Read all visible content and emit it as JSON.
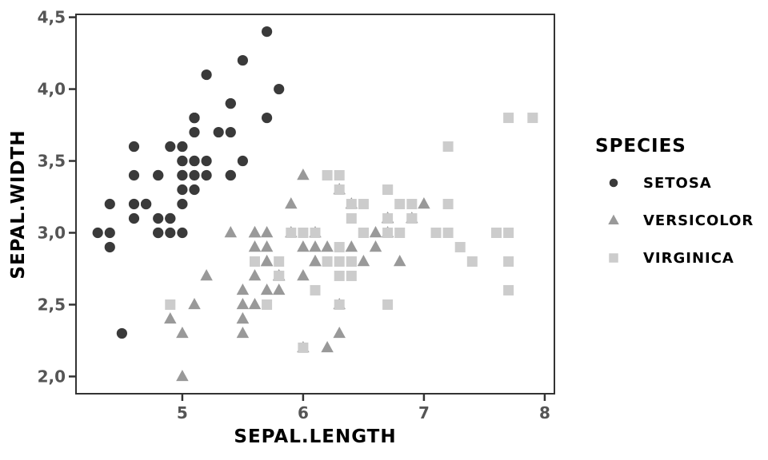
{
  "chart_data": {
    "type": "scatter",
    "title": "",
    "xlabel": "SEPAL.LENGTH",
    "ylabel": "SEPAL.WIDTH",
    "xlim": [
      4.12,
      8.08
    ],
    "ylim": [
      1.88,
      4.52
    ],
    "grid": false,
    "background": "#ffffff",
    "x_ticks": {
      "values": [
        5,
        6,
        7,
        8
      ],
      "labels": [
        "5",
        "6",
        "7",
        "8"
      ]
    },
    "y_ticks": {
      "values": [
        2.0,
        2.5,
        3.0,
        3.5,
        4.0,
        4.5
      ],
      "labels": [
        "2,0",
        "2,5",
        "3,0",
        "3,5",
        "4,0",
        "4,5"
      ]
    },
    "colors": {
      "axis": "#333333",
      "tick_label": "#555555",
      "title_text": "#000000",
      "setosa": "#3a3a3a",
      "versicolor": "#999999",
      "virginica": "#cccccc"
    },
    "legend": {
      "title": "SPECIES",
      "position": "right",
      "entries": [
        {
          "label": "SETOSA",
          "marker": "circle",
          "color": "#3a3a3a"
        },
        {
          "label": "VERSICOLOR",
          "marker": "triangle",
          "color": "#999999"
        },
        {
          "label": "VIRGINICA",
          "marker": "square",
          "color": "#cccccc"
        }
      ]
    },
    "series": [
      {
        "name": "SETOSA",
        "marker": "circle",
        "color": "#3a3a3a",
        "points": [
          [
            5.1,
            3.5
          ],
          [
            4.9,
            3.0
          ],
          [
            4.7,
            3.2
          ],
          [
            4.6,
            3.1
          ],
          [
            5.0,
            3.6
          ],
          [
            5.4,
            3.9
          ],
          [
            4.6,
            3.4
          ],
          [
            5.0,
            3.4
          ],
          [
            4.4,
            2.9
          ],
          [
            4.9,
            3.1
          ],
          [
            5.4,
            3.7
          ],
          [
            4.8,
            3.4
          ],
          [
            4.8,
            3.0
          ],
          [
            4.3,
            3.0
          ],
          [
            5.8,
            4.0
          ],
          [
            5.7,
            4.4
          ],
          [
            5.4,
            3.9
          ],
          [
            5.1,
            3.5
          ],
          [
            5.7,
            3.8
          ],
          [
            5.1,
            3.8
          ],
          [
            5.4,
            3.4
          ],
          [
            5.1,
            3.7
          ],
          [
            4.6,
            3.6
          ],
          [
            5.1,
            3.3
          ],
          [
            4.8,
            3.4
          ],
          [
            5.0,
            3.0
          ],
          [
            5.0,
            3.4
          ],
          [
            5.2,
            3.5
          ],
          [
            5.2,
            3.4
          ],
          [
            4.7,
            3.2
          ],
          [
            4.8,
            3.1
          ],
          [
            5.4,
            3.4
          ],
          [
            5.2,
            4.1
          ],
          [
            5.5,
            4.2
          ],
          [
            4.9,
            3.1
          ],
          [
            5.0,
            3.2
          ],
          [
            5.5,
            3.5
          ],
          [
            4.9,
            3.6
          ],
          [
            4.4,
            3.0
          ],
          [
            5.1,
            3.4
          ],
          [
            5.0,
            3.5
          ],
          [
            4.5,
            2.3
          ],
          [
            4.4,
            3.2
          ],
          [
            5.0,
            3.5
          ],
          [
            5.1,
            3.8
          ],
          [
            4.8,
            3.0
          ],
          [
            5.1,
            3.8
          ],
          [
            4.6,
            3.2
          ],
          [
            5.3,
            3.7
          ],
          [
            5.0,
            3.3
          ]
        ]
      },
      {
        "name": "VERSICOLOR",
        "marker": "triangle",
        "color": "#999999",
        "points": [
          [
            7.0,
            3.2
          ],
          [
            6.4,
            3.2
          ],
          [
            6.9,
            3.1
          ],
          [
            5.5,
            2.3
          ],
          [
            6.5,
            2.8
          ],
          [
            5.7,
            2.8
          ],
          [
            6.3,
            3.3
          ],
          [
            4.9,
            2.4
          ],
          [
            6.6,
            2.9
          ],
          [
            5.2,
            2.7
          ],
          [
            5.0,
            2.0
          ],
          [
            5.9,
            3.0
          ],
          [
            6.0,
            2.2
          ],
          [
            6.1,
            2.9
          ],
          [
            5.6,
            2.9
          ],
          [
            6.7,
            3.1
          ],
          [
            5.6,
            3.0
          ],
          [
            5.8,
            2.7
          ],
          [
            6.2,
            2.2
          ],
          [
            5.6,
            2.5
          ],
          [
            5.9,
            3.2
          ],
          [
            6.1,
            2.8
          ],
          [
            6.3,
            2.5
          ],
          [
            6.1,
            2.8
          ],
          [
            6.4,
            2.9
          ],
          [
            6.6,
            3.0
          ],
          [
            6.8,
            2.8
          ],
          [
            6.7,
            3.0
          ],
          [
            6.0,
            2.9
          ],
          [
            5.7,
            2.6
          ],
          [
            5.5,
            2.4
          ],
          [
            5.5,
            2.4
          ],
          [
            5.8,
            2.7
          ],
          [
            6.0,
            2.7
          ],
          [
            5.4,
            3.0
          ],
          [
            6.0,
            3.4
          ],
          [
            6.7,
            3.1
          ],
          [
            6.3,
            2.3
          ],
          [
            5.6,
            3.0
          ],
          [
            5.5,
            2.5
          ],
          [
            5.5,
            2.6
          ],
          [
            6.1,
            3.0
          ],
          [
            5.8,
            2.6
          ],
          [
            5.0,
            2.3
          ],
          [
            5.6,
            2.7
          ],
          [
            5.7,
            3.0
          ],
          [
            5.7,
            2.9
          ],
          [
            6.2,
            2.9
          ],
          [
            5.1,
            2.5
          ],
          [
            5.7,
            2.8
          ]
        ]
      },
      {
        "name": "VIRGINICA",
        "marker": "square",
        "color": "#cccccc",
        "points": [
          [
            6.3,
            3.3
          ],
          [
            5.8,
            2.7
          ],
          [
            7.1,
            3.0
          ],
          [
            6.3,
            2.9
          ],
          [
            6.5,
            3.0
          ],
          [
            7.6,
            3.0
          ],
          [
            4.9,
            2.5
          ],
          [
            7.3,
            2.9
          ],
          [
            6.7,
            2.5
          ],
          [
            7.2,
            3.6
          ],
          [
            6.5,
            3.2
          ],
          [
            6.4,
            2.7
          ],
          [
            6.8,
            3.0
          ],
          [
            5.7,
            2.5
          ],
          [
            5.8,
            2.8
          ],
          [
            6.4,
            3.2
          ],
          [
            6.5,
            3.0
          ],
          [
            7.7,
            3.8
          ],
          [
            7.7,
            2.6
          ],
          [
            6.0,
            2.2
          ],
          [
            6.9,
            3.2
          ],
          [
            5.6,
            2.8
          ],
          [
            7.7,
            2.8
          ],
          [
            6.3,
            2.7
          ],
          [
            6.7,
            3.3
          ],
          [
            7.2,
            3.2
          ],
          [
            6.2,
            2.8
          ],
          [
            6.1,
            3.0
          ],
          [
            6.4,
            2.8
          ],
          [
            7.2,
            3.0
          ],
          [
            7.4,
            2.8
          ],
          [
            7.9,
            3.8
          ],
          [
            6.4,
            2.8
          ],
          [
            6.3,
            2.8
          ],
          [
            6.1,
            2.6
          ],
          [
            7.7,
            3.0
          ],
          [
            6.3,
            3.4
          ],
          [
            6.4,
            3.1
          ],
          [
            6.0,
            3.0
          ],
          [
            6.9,
            3.1
          ],
          [
            6.7,
            3.1
          ],
          [
            6.9,
            3.1
          ],
          [
            5.8,
            2.7
          ],
          [
            6.8,
            3.2
          ],
          [
            6.7,
            3.3
          ],
          [
            6.7,
            3.0
          ],
          [
            6.3,
            2.5
          ],
          [
            6.5,
            3.0
          ],
          [
            6.2,
            3.4
          ],
          [
            5.9,
            3.0
          ]
        ]
      }
    ]
  }
}
